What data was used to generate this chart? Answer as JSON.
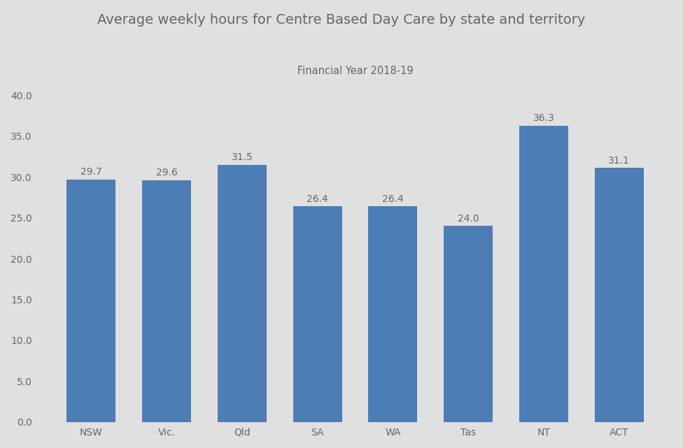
{
  "categories": [
    "NSW",
    "Vic.",
    "Qld",
    "SA",
    "WA",
    "Tas",
    "NT",
    "ACT"
  ],
  "values": [
    29.7,
    29.6,
    31.5,
    26.4,
    26.4,
    24.0,
    36.3,
    31.1
  ],
  "bar_color": "#4d7db5",
  "title": "Average weekly hours for Centre Based Day Care by state and territory",
  "subtitle": "Financial Year 2018-19",
  "title_fontsize": 14,
  "subtitle_fontsize": 10.5,
  "ylim": [
    0,
    40
  ],
  "yticks": [
    0.0,
    5.0,
    10.0,
    15.0,
    20.0,
    25.0,
    30.0,
    35.0,
    40.0
  ],
  "background_color": "#e0e0e0",
  "tick_color": "#666666",
  "label_fontsize": 10,
  "bar_label_fontsize": 10,
  "bar_width": 0.65
}
